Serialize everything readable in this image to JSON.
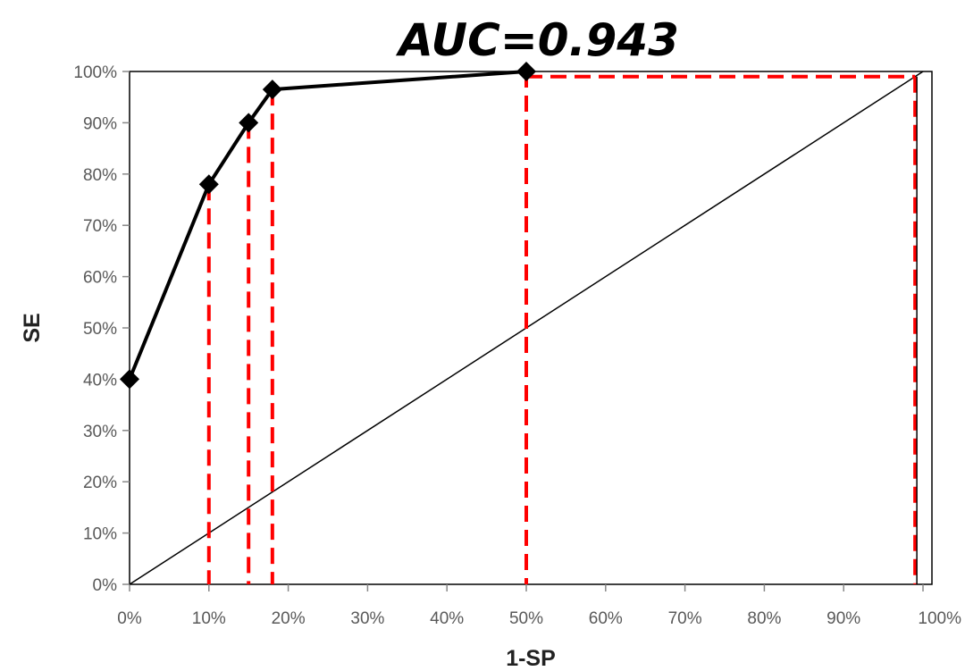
{
  "chart_data": {
    "type": "line",
    "title": "AUC=0.943",
    "xlabel": "1-SP",
    "ylabel": "SE",
    "xlim": [
      0,
      100
    ],
    "ylim": [
      0,
      100
    ],
    "x_ticks": [
      "0%",
      "10%",
      "20%",
      "30%",
      "40%",
      "50%",
      "60%",
      "70%",
      "80%",
      "90%",
      "100%"
    ],
    "y_ticks": [
      "0%",
      "10%",
      "20%",
      "30%",
      "40%",
      "50%",
      "60%",
      "70%",
      "80%",
      "90%",
      "100%"
    ],
    "grid": false,
    "series": [
      {
        "x": [
          0,
          10,
          15,
          18,
          50
        ],
        "y": [
          40,
          78,
          90,
          96.5,
          100
        ],
        "color": "#000000",
        "marker": "diamond"
      }
    ],
    "reference_line": {
      "x": [
        0,
        100
      ],
      "y": [
        0,
        100
      ],
      "color": "#000000"
    },
    "dashed_verticals": {
      "x": [
        10,
        15,
        18,
        50,
        99
      ],
      "color": "#ff0000"
    },
    "dashed_horizontal": {
      "y": 99,
      "x_range": [
        50,
        99
      ],
      "color": "#ff0000"
    }
  }
}
